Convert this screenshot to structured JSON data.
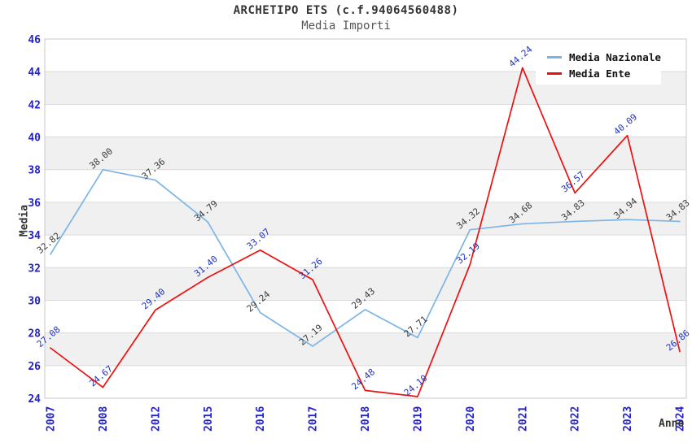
{
  "chart_data": {
    "type": "line",
    "title": "ARCHETIPO ETS (c.f.94064560488)",
    "subtitle": "Media Importi",
    "xlabel": "Anno",
    "ylabel": "Media",
    "categories": [
      "2007",
      "2008",
      "2012",
      "2015",
      "2016",
      "2017",
      "2018",
      "2019",
      "2020",
      "2021",
      "2022",
      "2023",
      "2024"
    ],
    "series": [
      {
        "name": "Media Nazionale",
        "color": "#7db4e6",
        "label_color": "#3a3a3a",
        "values": [
          32.82,
          38.0,
          37.36,
          34.79,
          29.24,
          27.19,
          29.43,
          27.71,
          34.32,
          34.68,
          34.83,
          34.94,
          34.83
        ]
      },
      {
        "name": "Media Ente",
        "color": "#ee1010",
        "label_color": "#2233bb",
        "values": [
          27.08,
          24.67,
          29.4,
          31.4,
          33.07,
          31.26,
          24.48,
          24.1,
          32.19,
          44.24,
          36.57,
          40.09,
          26.86
        ]
      }
    ],
    "ylim": [
      24,
      46
    ],
    "ytick_step": 2,
    "grid": true,
    "band_colors": [
      "#ffffff",
      "#f0f0f0"
    ],
    "axis_tick_color": "#2222cc",
    "legend_position": "top-right"
  }
}
